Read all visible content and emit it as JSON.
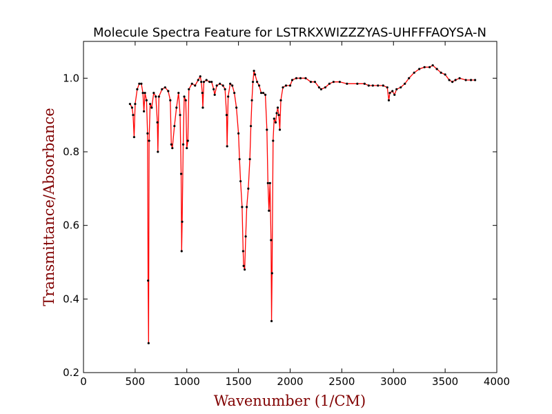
{
  "chart_data": {
    "type": "line",
    "title": "Molecule Spectra Feature for LSTRKXWIZZZYAS-UHFFFAOYSA-N",
    "xlabel": "Wavenumber (1/CM)",
    "ylabel": "Transmittance/Absorbance",
    "color": "#ff0000",
    "marker_color": "#000000",
    "label_color": "#800000",
    "xlim": [
      0,
      4000
    ],
    "ylim": [
      0.2,
      1.1
    ],
    "xticks": [
      0,
      500,
      1000,
      1500,
      2000,
      2500,
      3000,
      3500,
      4000
    ],
    "yticks": [
      0.2,
      0.4,
      0.6,
      0.8,
      {
        "value": 1,
        "label": "1.0"
      }
    ],
    "x": [
      450,
      470,
      480,
      490,
      500,
      520,
      540,
      560,
      575,
      585,
      595,
      610,
      620,
      625,
      630,
      635,
      645,
      660,
      680,
      700,
      715,
      720,
      730,
      760,
      790,
      820,
      840,
      850,
      860,
      880,
      900,
      920,
      935,
      945,
      950,
      955,
      965,
      975,
      990,
      1000,
      1010,
      1020,
      1050,
      1080,
      1110,
      1130,
      1140,
      1150,
      1155,
      1165,
      1190,
      1220,
      1240,
      1260,
      1270,
      1290,
      1320,
      1350,
      1370,
      1385,
      1390,
      1400,
      1420,
      1440,
      1460,
      1480,
      1500,
      1510,
      1520,
      1535,
      1545,
      1550,
      1560,
      1570,
      1580,
      1595,
      1610,
      1620,
      1630,
      1640,
      1650,
      1660,
      1680,
      1700,
      1720,
      1740,
      1760,
      1775,
      1785,
      1795,
      1805,
      1815,
      1820,
      1825,
      1835,
      1845,
      1860,
      1870,
      1880,
      1890,
      1900,
      1910,
      1930,
      1960,
      2000,
      2020,
      2060,
      2100,
      2150,
      2200,
      2240,
      2280,
      2300,
      2340,
      2380,
      2420,
      2480,
      2550,
      2650,
      2720,
      2760,
      2800,
      2850,
      2900,
      2940,
      2955,
      2965,
      2990,
      3010,
      3030,
      3070,
      3110,
      3150,
      3200,
      3250,
      3300,
      3350,
      3380,
      3420,
      3460,
      3500,
      3540,
      3570,
      3600,
      3640,
      3700,
      3750,
      3790
    ],
    "values": [
      0.93,
      0.92,
      0.9,
      0.84,
      0.93,
      0.97,
      0.985,
      0.985,
      0.96,
      0.91,
      0.96,
      0.94,
      0.85,
      0.45,
      0.28,
      0.83,
      0.93,
      0.92,
      0.96,
      0.95,
      0.88,
      0.8,
      0.95,
      0.97,
      0.975,
      0.965,
      0.94,
      0.82,
      0.81,
      0.87,
      0.92,
      0.96,
      0.9,
      0.74,
      0.53,
      0.61,
      0.82,
      0.95,
      0.94,
      0.81,
      0.83,
      0.97,
      0.985,
      0.98,
      0.995,
      1.005,
      0.99,
      0.96,
      0.92,
      0.99,
      0.995,
      0.99,
      0.99,
      0.97,
      0.955,
      0.98,
      0.985,
      0.98,
      0.97,
      0.9,
      0.815,
      0.95,
      0.985,
      0.98,
      0.96,
      0.92,
      0.85,
      0.78,
      0.72,
      0.65,
      0.53,
      0.49,
      0.48,
      0.57,
      0.65,
      0.7,
      0.78,
      0.87,
      0.94,
      0.99,
      1.02,
      1.01,
      0.99,
      0.98,
      0.96,
      0.96,
      0.955,
      0.86,
      0.715,
      0.64,
      0.715,
      0.56,
      0.34,
      0.47,
      0.83,
      0.89,
      0.88,
      0.905,
      0.92,
      0.9,
      0.86,
      0.94,
      0.975,
      0.98,
      0.98,
      0.995,
      1.0,
      1.0,
      1.0,
      0.99,
      0.99,
      0.975,
      0.97,
      0.975,
      0.985,
      0.99,
      0.99,
      0.985,
      0.985,
      0.985,
      0.98,
      0.98,
      0.98,
      0.98,
      0.975,
      0.94,
      0.96,
      0.965,
      0.955,
      0.97,
      0.975,
      0.985,
      1.0,
      1.015,
      1.025,
      1.03,
      1.03,
      1.035,
      1.025,
      1.015,
      1.01,
      0.995,
      0.99,
      0.995,
      1.0,
      0.995,
      0.995,
      0.995
    ]
  }
}
